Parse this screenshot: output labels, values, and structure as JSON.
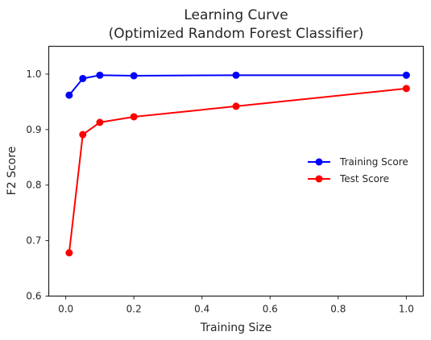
{
  "chart_data": {
    "type": "line",
    "title_lines": [
      "Learning Curve",
      "(Optimized Random Forest Classifier)"
    ],
    "xlabel": "Training Size",
    "ylabel": "F2 Score",
    "xlim": [
      -0.05,
      1.05
    ],
    "ylim": [
      0.6,
      1.05
    ],
    "xticks": [
      0.0,
      0.2,
      0.4,
      0.6,
      0.8,
      1.0
    ],
    "xtick_labels": [
      "0.0",
      "0.2",
      "0.4",
      "0.6",
      "0.8",
      "1.0"
    ],
    "yticks": [
      0.6,
      0.7,
      0.8,
      0.9,
      1.0
    ],
    "ytick_labels": [
      "0.6",
      "0.7",
      "0.8",
      "0.9",
      "1.0"
    ],
    "grid": false,
    "legend_position": "center-right",
    "series": [
      {
        "name": "Training Score",
        "color": "#0000ff",
        "x": [
          0.01,
          0.05,
          0.1,
          0.2,
          0.5,
          1.0
        ],
        "y": [
          0.962,
          0.992,
          0.998,
          0.997,
          0.998,
          0.998
        ]
      },
      {
        "name": "Test Score",
        "color": "#ff0000",
        "x": [
          0.01,
          0.05,
          0.1,
          0.2,
          0.5,
          1.0
        ],
        "y": [
          0.678,
          0.891,
          0.913,
          0.923,
          0.942,
          0.974
        ]
      }
    ]
  }
}
